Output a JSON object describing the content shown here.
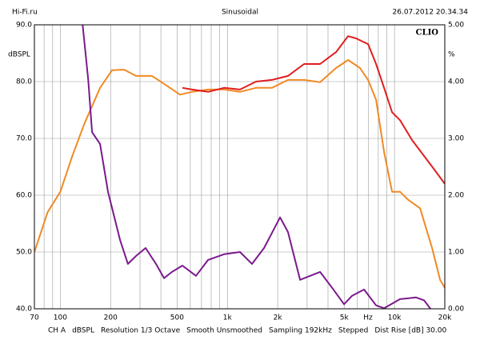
{
  "chart_data": {
    "type": "line",
    "header": {
      "left": "Hi-Fi.ru",
      "center": "Sinusoidal",
      "right": "26.07.2012 20.34.34"
    },
    "brand": "CLIO",
    "ylabel": "dBSPL",
    "y2label": "%",
    "xlabel": "Hz",
    "xscale": "log",
    "grid": true,
    "xlim": [
      70,
      20000
    ],
    "xticks": [
      70,
      100,
      200,
      500,
      {
        "value": 1000,
        "label": "1k"
      },
      {
        "value": 2000,
        "label": "2k"
      },
      {
        "value": 5000,
        "label": "5k"
      },
      {
        "value": 10000,
        "label": "10k"
      },
      {
        "value": 20000,
        "label": "20k"
      }
    ],
    "xminor": [
      80,
      90,
      300,
      400,
      600,
      700,
      800,
      900,
      3000,
      4000,
      6000,
      7000,
      8000,
      9000
    ],
    "ylim": [
      40,
      90
    ],
    "yticks": [
      {
        "value": 40,
        "label": "40.0"
      },
      {
        "value": 50,
        "label": "50.0"
      },
      {
        "value": 60,
        "label": "60.0"
      },
      {
        "value": 70,
        "label": "70.0"
      },
      {
        "value": 80,
        "label": "80.0"
      },
      {
        "value": 90,
        "label": "90.0"
      }
    ],
    "y2lim": [
      0,
      5
    ],
    "y2ticks": [
      {
        "value": 0,
        "label": "0.00"
      },
      {
        "value": 1,
        "label": "1.00"
      },
      {
        "value": 2,
        "label": "2.00"
      },
      {
        "value": 3,
        "label": "3.00"
      },
      {
        "value": 4,
        "label": "4.00"
      },
      {
        "value": 5,
        "label": "5.00"
      }
    ],
    "series": [
      {
        "color": "#f08a24",
        "x": [
          70,
          84,
          100,
          118,
          139,
          173,
          204,
          241,
          284,
          354,
          418,
          521,
          614,
          766,
          955,
          1190,
          1484,
          1850,
          2306,
          2876,
          3585,
          4470,
          5273,
          6220,
          6948,
          7757,
          8660,
          9668,
          10800,
          12060,
          14220,
          16790,
          18740,
          20000
        ],
        "values": [
          50.0,
          57.0,
          60.6,
          66.9,
          72.5,
          78.9,
          82.0,
          82.1,
          81.0,
          81.0,
          79.6,
          77.7,
          78.2,
          78.6,
          78.6,
          78.2,
          78.9,
          78.9,
          80.3,
          80.3,
          79.9,
          82.4,
          83.8,
          82.4,
          80.3,
          76.8,
          67.6,
          60.6,
          60.6,
          59.2,
          57.7,
          50.7,
          45.1,
          43.7
        ]
      },
      {
        "color": "#e01e1e",
        "x": [
          538,
          614,
          766,
          955,
          1190,
          1484,
          1850,
          2306,
          2876,
          3585,
          4470,
          5273,
          5887,
          6948,
          7757,
          8660,
          9668,
          10800,
          12740,
          15030,
          17730,
          20000
        ],
        "values": [
          78.9,
          78.6,
          78.2,
          78.9,
          78.6,
          80.0,
          80.3,
          81.0,
          83.1,
          83.1,
          85.2,
          88.0,
          87.6,
          86.6,
          83.1,
          78.9,
          74.6,
          73.2,
          69.7,
          66.9,
          64.1,
          62.0
        ]
      },
      {
        "color": "#7b1a8c",
        "axis": "y2",
        "x": [
          136,
          147,
          155,
          173,
          193,
          228,
          254,
          284,
          324,
          374,
          418,
          466,
          538,
          649,
          766,
          955,
          1190,
          1404,
          1657,
          2066,
          2306,
          2723,
          3585,
          4231,
          4990,
          5572,
          6575,
          7757,
          8660,
          10800,
          13460,
          15030,
          16420
        ],
        "values": [
          5.0,
          4.03,
          3.11,
          2.9,
          2.06,
          1.21,
          0.79,
          0.93,
          1.07,
          0.79,
          0.54,
          0.65,
          0.76,
          0.58,
          0.86,
          0.96,
          1.0,
          0.79,
          1.07,
          1.61,
          1.35,
          0.51,
          0.65,
          0.37,
          0.08,
          0.23,
          0.34,
          0.06,
          0.01,
          0.17,
          0.2,
          0.15,
          0.0
        ]
      }
    ],
    "footer": [
      "CH A",
      "dBSPL",
      "Resolution 1/3 Octave",
      "Smooth Unsmoothed",
      "Sampling 192kHz",
      "Stepped",
      "Dist Rise [dB] 30.00"
    ]
  }
}
